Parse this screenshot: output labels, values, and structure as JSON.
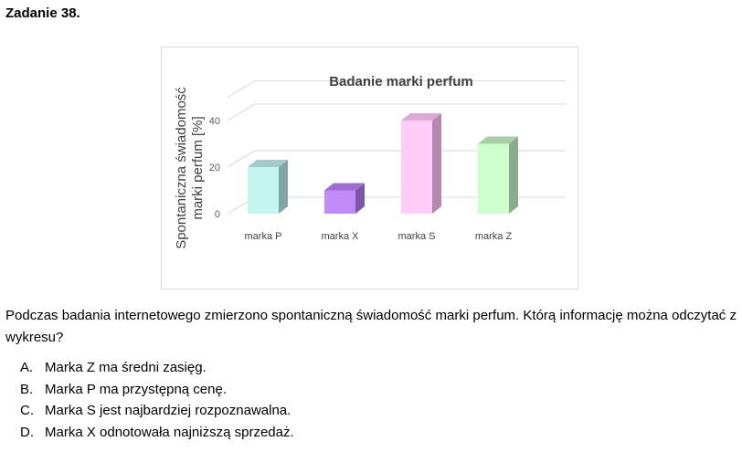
{
  "task": {
    "heading": "Zadanie 38."
  },
  "chart_data": {
    "type": "bar",
    "title": "Badanie marki perfum",
    "ylabel_line1": "Spontaniczna świadomość",
    "ylabel_line2": "marki perfum  [%]",
    "yticks": [
      "0",
      "20",
      "40"
    ],
    "ylim": [
      0,
      50
    ],
    "grid": true,
    "categories": [
      "marka P",
      "marka X",
      "marka S",
      "marka Z"
    ],
    "values": [
      20,
      10,
      40,
      30
    ],
    "colors": [
      {
        "front": "#c4f6f0",
        "side": "#7fa6a3",
        "top": "#a3cbc7"
      },
      {
        "front": "#c28cf8",
        "side": "#7e56a8",
        "top": "#a16dd3"
      },
      {
        "front": "#ffcdf8",
        "side": "#b488ad",
        "top": "#dcaad4"
      },
      {
        "front": "#ccffcc",
        "side": "#8aac8a",
        "top": "#a8d0a8"
      }
    ]
  },
  "question": {
    "text": "Podczas badania internetowego zmierzono spontaniczną świadomość marki perfum. Którą informację można odczytać z wykresu?"
  },
  "answers": [
    {
      "letter": "A.",
      "text": "Marka Z ma średni zasięg."
    },
    {
      "letter": "B.",
      "text": "Marka P ma przystępną cenę."
    },
    {
      "letter": "C.",
      "text": "Marka S jest najbardziej rozpoznawalna."
    },
    {
      "letter": "D.",
      "text": "Marka X odnotowała najniższą sprzedaż."
    }
  ]
}
